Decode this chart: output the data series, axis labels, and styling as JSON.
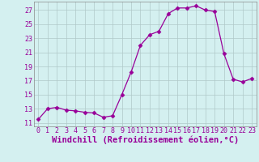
{
  "x": [
    0,
    1,
    2,
    3,
    4,
    5,
    6,
    7,
    8,
    9,
    10,
    11,
    12,
    13,
    14,
    15,
    16,
    17,
    18,
    19,
    20,
    21,
    22,
    23
  ],
  "y": [
    11.5,
    13.0,
    13.2,
    12.8,
    12.7,
    12.5,
    12.4,
    11.8,
    12.0,
    15.0,
    18.2,
    22.0,
    23.5,
    24.0,
    26.5,
    27.3,
    27.3,
    27.6,
    27.0,
    26.8,
    20.8,
    17.2,
    16.8,
    17.3
  ],
  "line_color": "#990099",
  "marker": "D",
  "marker_size": 2.5,
  "bg_color": "#d4f0f0",
  "grid_color": "#b0c8c8",
  "yticks": [
    11,
    13,
    15,
    17,
    19,
    21,
    23,
    25,
    27
  ],
  "xticks": [
    0,
    1,
    2,
    3,
    4,
    5,
    6,
    7,
    8,
    9,
    10,
    11,
    12,
    13,
    14,
    15,
    16,
    17,
    18,
    19,
    20,
    21,
    22,
    23
  ],
  "ylim": [
    10.5,
    28.2
  ],
  "xlim": [
    -0.5,
    23.5
  ],
  "xlabel": "Windchill (Refroidissement éolien,°C)",
  "xlabel_color": "#990099",
  "tick_color": "#990099",
  "tick_fontsize": 6.0,
  "xlabel_fontsize": 7.5
}
